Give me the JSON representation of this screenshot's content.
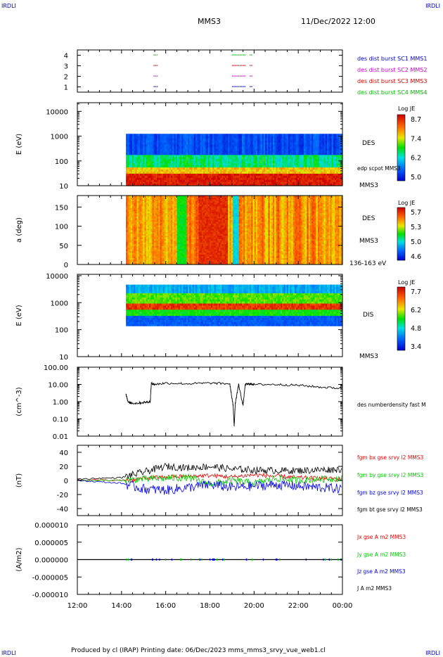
{
  "header": {
    "corner_tl": "IRDLI",
    "corner_tr": "IRDLI",
    "corner_bl": "IRDLI",
    "corner_br": "IRDLI",
    "spacecraft": "MMS3",
    "datetime": "11/Dec/2022 12:00"
  },
  "footer": {
    "text": "Produced by cl (IRAP)   Printing date: 06/Dec/2023   mms_mms3_srvy_vue_web1.cl"
  },
  "colors": {
    "mms1": "#0000cc",
    "mms2": "#cc00cc",
    "mms3": "#dd0000",
    "mms4": "#00bb00",
    "bx": "#ee0000",
    "by": "#00cc00",
    "bz": "#0000ee",
    "bt": "#000000"
  },
  "chart_data": [
    {
      "type": "scatter",
      "panel": "burst availability",
      "ylim": [
        0.5,
        4.5
      ],
      "yticks": [
        "1",
        "2",
        "3",
        "4"
      ],
      "legend": [
        "des dist burst SC1 MMS1",
        "des dist burst SC2 MMS2",
        "des dist burst SC3 MMS3",
        "des dist burst SC4 MMS4"
      ],
      "intervals_hours": [
        [
          15.45,
          15.6
        ],
        [
          19.0,
          19.6
        ],
        [
          19.8,
          19.9
        ]
      ]
    },
    {
      "type": "heatmap",
      "panel": "electron energy spectrogram",
      "ylabel": "E (eV)",
      "ytick_labels": [
        "10",
        "100",
        "1000",
        "10000"
      ],
      "right_labels": [
        "DES",
        "edp scpot MMS3",
        "MMS3"
      ],
      "colorbar": {
        "title": "Log JE",
        "ticks": [
          "8.7",
          "7.4",
          "6.2",
          "5.0"
        ]
      },
      "data_start_hour": 14.2
    },
    {
      "type": "heatmap",
      "panel": "electron pitch angle",
      "ylabel": "a (deg)",
      "ytick_labels": [
        "0",
        "50",
        "100",
        "150"
      ],
      "right_labels": [
        "DES",
        "MMS3",
        "136-163 eV"
      ],
      "colorbar": {
        "title": "Log JE",
        "ticks": [
          "5.7",
          "5.3",
          "5.0",
          "4.6"
        ]
      },
      "data_start_hour": 14.2
    },
    {
      "type": "heatmap",
      "panel": "ion energy spectrogram",
      "ylabel": "E (eV)",
      "ytick_labels": [
        "10",
        "100",
        "1000",
        "10000"
      ],
      "right_labels": [
        "DIS",
        "MMS3"
      ],
      "colorbar": {
        "title": "Log JE",
        "ticks": [
          "7.7",
          "6.2",
          "4.8",
          "3.4"
        ]
      },
      "data_start_hour": 14.2
    },
    {
      "type": "line",
      "panel": "density",
      "ylabel": "(cm^-3)",
      "ytick_labels": [
        "0.01",
        "0.10",
        "1.00",
        "10.00",
        "100.00"
      ],
      "legend": [
        "des numberdensity fast M"
      ],
      "x": [
        14.2,
        14.3,
        14.6,
        15.0,
        15.3,
        15.35,
        15.5,
        16.0,
        17.0,
        18.0,
        18.9,
        19.05,
        19.1,
        19.15,
        19.3,
        19.5,
        19.6,
        19.8,
        20.0,
        21.0,
        22.0,
        23.0,
        24.0
      ],
      "y": [
        3.0,
        0.9,
        0.8,
        0.9,
        1.0,
        12,
        10,
        12,
        11,
        12,
        11,
        0.6,
        0.04,
        0.8,
        10,
        0.6,
        10,
        11,
        10,
        10,
        9,
        7,
        6
      ]
    },
    {
      "type": "line",
      "panel": "magnetic field",
      "ylabel": "(nT)",
      "ylim": [
        -50,
        50
      ],
      "ytick_labels": [
        "-40",
        "-20",
        "0",
        "20",
        "40"
      ],
      "series": [
        {
          "name": "fgm bx gse srvy l2 MMS3",
          "x": [
            12,
            14,
            15,
            16,
            17,
            18,
            19,
            20,
            21,
            22,
            23,
            24
          ],
          "y": [
            1,
            0,
            3,
            5,
            6,
            7,
            5,
            8,
            6,
            4,
            3,
            2
          ]
        },
        {
          "name": "fgm by gse srvy l2 MMS3",
          "x": [
            12,
            14,
            15,
            16,
            17,
            18,
            19,
            20,
            21,
            22,
            23,
            24
          ],
          "y": [
            0,
            0,
            2,
            3,
            4,
            -5,
            0,
            -4,
            3,
            0,
            2,
            3
          ]
        },
        {
          "name": "fgm bz gse srvy l2 MMS3",
          "x": [
            12,
            14,
            15,
            16,
            17,
            18,
            19,
            20,
            21,
            22,
            23,
            24
          ],
          "y": [
            0,
            -4,
            -12,
            -14,
            -10,
            -6,
            -10,
            -8,
            -6,
            -8,
            -10,
            -12
          ]
        },
        {
          "name": "fgm bt gse srvy l2 MMS3",
          "x": [
            12,
            14,
            15,
            16,
            17,
            18,
            19,
            20,
            21,
            22,
            23,
            24
          ],
          "y": [
            2,
            4,
            12,
            20,
            18,
            20,
            16,
            15,
            14,
            14,
            15,
            16
          ]
        }
      ]
    },
    {
      "type": "line",
      "panel": "current density",
      "ylabel": "(A/m2)",
      "ylim": [
        -1e-05,
        1e-05
      ],
      "ytick_labels": [
        "-0.000010",
        "-0.000005",
        "0.000000",
        "0.000005",
        "0.000010"
      ],
      "series": [
        {
          "name": "Jx gse A m2 MMS3",
          "x": [
            12,
            24
          ],
          "y": [
            0,
            0
          ]
        },
        {
          "name": "Jy gse A m2 MMS3",
          "x": [
            12,
            24
          ],
          "y": [
            0,
            0
          ]
        },
        {
          "name": "Jz gse A m2 MMS3",
          "x": [
            12,
            24
          ],
          "y": [
            0,
            0
          ]
        },
        {
          "name": "J A m2 MMS3",
          "x": [
            12,
            24
          ],
          "y": [
            0,
            0
          ]
        }
      ]
    }
  ],
  "xaxis": {
    "range_hours": [
      12,
      24
    ],
    "tick_labels": [
      "12:00",
      "14:00",
      "16:00",
      "18:00",
      "20:00",
      "22:00",
      "00:00"
    ]
  }
}
